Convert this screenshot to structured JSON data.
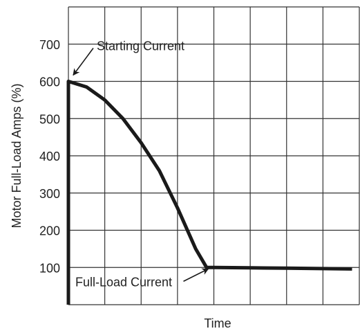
{
  "chart_data": {
    "type": "line",
    "title": "",
    "xlabel": "Time",
    "ylabel": "Motor Full-Load Amps (%)",
    "ylim": [
      0,
      800
    ],
    "yticks": [
      100,
      200,
      300,
      400,
      500,
      600,
      700
    ],
    "grid": true,
    "legend": "none",
    "colors": {
      "line": "#1a1a1a",
      "grid": "#333333",
      "text": "#222222"
    },
    "series": [
      {
        "x": [
          0,
          0,
          0.5,
          1,
          1.5,
          2,
          2.5,
          3,
          3.5,
          3.8,
          4,
          5,
          6,
          7,
          7.8
        ],
        "values": [
          0,
          600,
          585,
          550,
          500,
          435,
          360,
          260,
          150,
          100,
          100,
          99,
          98,
          97,
          96
        ]
      }
    ],
    "annotations": [
      {
        "text": "Starting Current",
        "x": 0,
        "y": 600
      },
      {
        "text": "Full-Load Current",
        "x": 4,
        "y": 100
      }
    ]
  }
}
